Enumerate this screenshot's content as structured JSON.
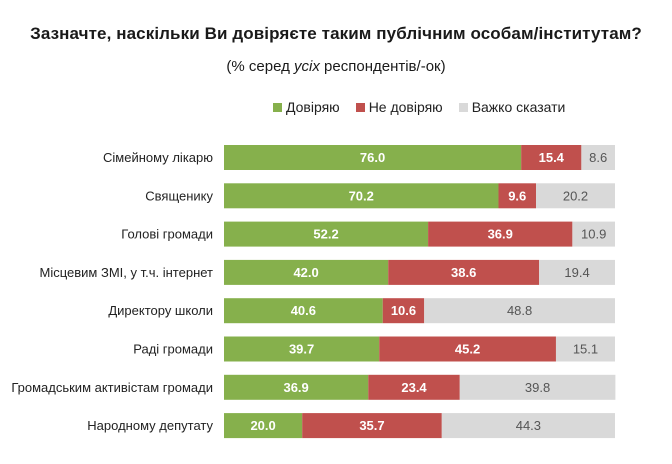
{
  "title": "Зазначте, наскільки Ви довіряєте таким публічним особам/інститутам?",
  "subtitle": {
    "prefix": "(% серед ",
    "emphasis": "усіх",
    "suffix": " респондентів/-ок)"
  },
  "colors": {
    "trust": "#86b04c",
    "distrust": "#c0504d",
    "hard_to_say": "#d9d9d9"
  },
  "chart_data": {
    "type": "bar",
    "orientation": "horizontal",
    "stacked": true,
    "title": "Зазначте, наскільки Ви довіряєте таким публічним особам/інститутам?",
    "subtitle": "(% серед усіх респондентів/-ок)",
    "legend_position": "top",
    "xlim": [
      0,
      100
    ],
    "categories": [
      "Сімейному лікарю",
      "Священику",
      "Голові громади",
      "Місцевим ЗМІ, у т.ч. інтернет",
      "Директору школи",
      "Раді громади",
      "Громадським активістам громади",
      "Народному депутату"
    ],
    "series": [
      {
        "name": "Довіряю",
        "color": "#86b04c",
        "values": [
          76.0,
          70.2,
          52.2,
          42.0,
          40.6,
          39.7,
          36.9,
          20.0
        ]
      },
      {
        "name": "Не довіряю",
        "color": "#c0504d",
        "values": [
          15.4,
          9.6,
          36.9,
          38.6,
          10.6,
          45.2,
          23.4,
          35.7
        ]
      },
      {
        "name": "Важко сказати",
        "color": "#d9d9d9",
        "values": [
          8.6,
          20.2,
          10.9,
          19.4,
          48.8,
          15.1,
          39.8,
          44.3
        ]
      }
    ]
  }
}
